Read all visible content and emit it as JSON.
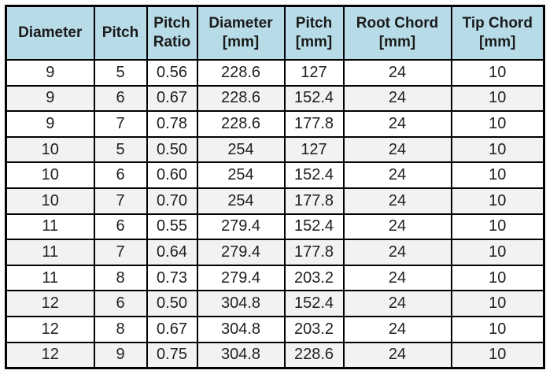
{
  "colors": {
    "header_background": "#b7dce8",
    "band_row_background": "#f2f2f2",
    "plain_row_background": "#ffffff",
    "grid_border": "#000000",
    "text": "#1f1f1f"
  },
  "header_lines": [
    [
      "Diameter",
      ""
    ],
    [
      "Pitch",
      ""
    ],
    [
      "Pitch",
      "Ratio"
    ],
    [
      "Diameter",
      "[mm]"
    ],
    [
      "Pitch",
      "[mm]"
    ],
    [
      "Root Chord",
      "[mm]"
    ],
    [
      "Tip Chord",
      "[mm]"
    ]
  ],
  "chart_data": {
    "type": "table",
    "title": "",
    "columns": [
      "Diameter",
      "Pitch",
      "Pitch Ratio",
      "Diameter [mm]",
      "Pitch [mm]",
      "Root Chord [mm]",
      "Tip Chord [mm]"
    ],
    "rows": [
      [
        "9",
        "5",
        "0.56",
        "228.6",
        "127",
        "24",
        "10"
      ],
      [
        "9",
        "6",
        "0.67",
        "228.6",
        "152.4",
        "24",
        "10"
      ],
      [
        "9",
        "7",
        "0.78",
        "228.6",
        "177.8",
        "24",
        "10"
      ],
      [
        "10",
        "5",
        "0.50",
        "254",
        "127",
        "24",
        "10"
      ],
      [
        "10",
        "6",
        "0.60",
        "254",
        "152.4",
        "24",
        "10"
      ],
      [
        "10",
        "7",
        "0.70",
        "254",
        "177.8",
        "24",
        "10"
      ],
      [
        "11",
        "6",
        "0.55",
        "279.4",
        "152.4",
        "24",
        "10"
      ],
      [
        "11",
        "7",
        "0.64",
        "279.4",
        "177.8",
        "24",
        "10"
      ],
      [
        "11",
        "8",
        "0.73",
        "279.4",
        "203.2",
        "24",
        "10"
      ],
      [
        "12",
        "6",
        "0.50",
        "304.8",
        "152.4",
        "24",
        "10"
      ],
      [
        "12",
        "8",
        "0.67",
        "304.8",
        "203.2",
        "24",
        "10"
      ],
      [
        "12",
        "9",
        "0.75",
        "304.8",
        "228.6",
        "24",
        "10"
      ]
    ]
  }
}
